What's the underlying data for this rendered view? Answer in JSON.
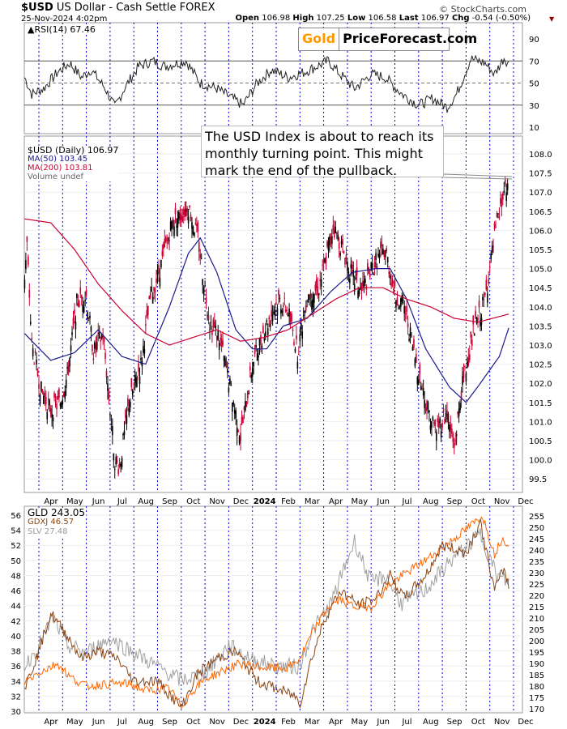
{
  "header": {
    "symbol": "$USD",
    "name": "US Dollar - Cash Settle",
    "exchange": "FOREX",
    "copyright": "© StockCharts.com",
    "datetime": "25-Nov-2024 4:02pm",
    "open_label": "Open",
    "open": "106.98",
    "high_label": "High",
    "high": "107.25",
    "low_label": "Low",
    "low": "106.58",
    "last_label": "Last",
    "last": "106.97",
    "chg_label": "Chg",
    "chg": "-0.54 (-0.50%)"
  },
  "logo": {
    "gold": "Gold",
    "rest": "PriceForecast.com"
  },
  "annotation": "The USD Index is about to reach its monthly turning point. This might mark the end of the pullback.",
  "colors": {
    "grid_month": "#0000dd",
    "ma50": "#1a1a8c",
    "ma200": "#cc0033",
    "gld": "#ff6600",
    "gdxj": "#8b4513",
    "slv": "#a0a0a0",
    "up": "#000000",
    "down": "#cc0033"
  },
  "chart_data": [
    {
      "type": "line",
      "title": "RSI(14) 67.46",
      "ylim": [
        0,
        100
      ],
      "yticks": [
        "90",
        "70",
        "50",
        "30",
        "10"
      ],
      "ytick_values": [
        90,
        70,
        50,
        30,
        10
      ],
      "t_unit": "months since Apr-2023",
      "series": [
        {
          "name": "RSI(14)",
          "points": [
            [
              -0.6,
              55
            ],
            [
              -0.3,
              40
            ],
            [
              0.2,
              45
            ],
            [
              0.8,
              60
            ],
            [
              1.3,
              68
            ],
            [
              1.8,
              55
            ],
            [
              2.2,
              62
            ],
            [
              2.8,
              45
            ],
            [
              3.2,
              28
            ],
            [
              3.6,
              45
            ],
            [
              4.2,
              65
            ],
            [
              4.8,
              70
            ],
            [
              5.3,
              65
            ],
            [
              6.2,
              70
            ],
            [
              6.8,
              50
            ],
            [
              7.5,
              45
            ],
            [
              8.0,
              38
            ],
            [
              8.6,
              30
            ],
            [
              9.2,
              50
            ],
            [
              9.8,
              62
            ],
            [
              10.5,
              55
            ],
            [
              11.2,
              60
            ],
            [
              12.2,
              70
            ],
            [
              12.6,
              60
            ],
            [
              13.3,
              45
            ],
            [
              14.0,
              58
            ],
            [
              14.6,
              55
            ],
            [
              15.3,
              40
            ],
            [
              16.0,
              30
            ],
            [
              16.6,
              36
            ],
            [
              17.2,
              28
            ],
            [
              17.6,
              40
            ],
            [
              18.2,
              72
            ],
            [
              18.8,
              68
            ],
            [
              19.2,
              58
            ],
            [
              19.6,
              73
            ],
            [
              19.8,
              67.46
            ]
          ]
        }
      ]
    },
    {
      "type": "candlestick",
      "title": "$USD (Daily) 106.97",
      "ylim": [
        99.2,
        108.3
      ],
      "yticks": [
        "108.0",
        "107.5",
        "107.0",
        "106.5",
        "106.0",
        "105.5",
        "105.0",
        "104.5",
        "104.0",
        "103.5",
        "103.0",
        "102.5",
        "102.0",
        "101.5",
        "101.0",
        "100.5",
        "100.0",
        "99.5"
      ],
      "ytick_values": [
        108,
        107.5,
        107,
        106.5,
        106,
        105.5,
        105,
        104.5,
        104,
        103.5,
        103,
        102.5,
        102,
        101.5,
        101,
        100.5,
        100,
        99.5
      ],
      "xticks": [
        "Apr",
        "May",
        "Jun",
        "Jul",
        "Aug",
        "Sep",
        "Oct",
        "Nov",
        "Dec",
        "2024",
        "Feb",
        "Mar",
        "Apr",
        "May",
        "Jun",
        "Jul",
        "Aug",
        "Sep",
        "Oct",
        "Nov",
        "Dec"
      ],
      "legend": [
        "$USD (Daily) 106.97",
        "MA(50) 103.45",
        "MA(200) 103.81",
        "Volume undef"
      ],
      "series": [
        {
          "name": "$USD",
          "points": [
            [
              -0.6,
              104.8
            ],
            [
              -0.5,
              105.6
            ],
            [
              -0.3,
              103
            ],
            [
              0.1,
              101.8
            ],
            [
              0.5,
              101.3
            ],
            [
              0.9,
              101.5
            ],
            [
              1.2,
              102.2
            ],
            [
              1.6,
              104.1
            ],
            [
              2.0,
              104.3
            ],
            [
              2.3,
              102.8
            ],
            [
              2.7,
              103.3
            ],
            [
              3.2,
              100.0
            ],
            [
              3.4,
              99.8
            ],
            [
              3.8,
              101.5
            ],
            [
              4.3,
              102.5
            ],
            [
              4.7,
              104.2
            ],
            [
              5.2,
              105.2
            ],
            [
              5.6,
              106.2
            ],
            [
              6.0,
              106.4
            ],
            [
              6.3,
              106.6
            ],
            [
              6.7,
              105.8
            ],
            [
              7.2,
              103.6
            ],
            [
              7.6,
              103.2
            ],
            [
              8.2,
              101.5
            ],
            [
              8.5,
              100.6
            ],
            [
              9.0,
              102.5
            ],
            [
              9.5,
              103.4
            ],
            [
              10.1,
              104.2
            ],
            [
              10.5,
              103.9
            ],
            [
              10.9,
              102.8
            ],
            [
              11.3,
              104.3
            ],
            [
              11.8,
              104.5
            ],
            [
              12.4,
              106.1
            ],
            [
              12.8,
              105.5
            ],
            [
              13.2,
              104.8
            ],
            [
              13.6,
              104.4
            ],
            [
              14.2,
              105.2
            ],
            [
              14.6,
              105.5
            ],
            [
              15.0,
              104.3
            ],
            [
              15.4,
              104.0
            ],
            [
              15.8,
              102.8
            ],
            [
              16.3,
              101.5
            ],
            [
              16.7,
              100.8
            ],
            [
              17.2,
              101.2
            ],
            [
              17.5,
              100.3
            ],
            [
              17.8,
              101.8
            ],
            [
              18.3,
              103.3
            ],
            [
              18.8,
              104.2
            ],
            [
              19.2,
              105.8
            ],
            [
              19.6,
              107.0
            ],
            [
              19.8,
              106.97
            ]
          ]
        },
        {
          "name": "MA(50)",
          "points": [
            [
              -0.6,
              103.3
            ],
            [
              0.5,
              102.6
            ],
            [
              1.5,
              102.8
            ],
            [
              2.5,
              103.4
            ],
            [
              3.5,
              102.7
            ],
            [
              4.5,
              102.5
            ],
            [
              5.5,
              104.0
            ],
            [
              6.3,
              105.4
            ],
            [
              6.8,
              105.8
            ],
            [
              7.5,
              104.9
            ],
            [
              8.3,
              103.4
            ],
            [
              9.0,
              102.9
            ],
            [
              9.6,
              102.9
            ],
            [
              10.3,
              103.5
            ],
            [
              11.3,
              103.7
            ],
            [
              12.3,
              104.4
            ],
            [
              13.2,
              104.9
            ],
            [
              14.2,
              105.0
            ],
            [
              14.8,
              105.0
            ],
            [
              15.5,
              104.2
            ],
            [
              16.3,
              102.9
            ],
            [
              17.3,
              101.9
            ],
            [
              18.0,
              101.5
            ],
            [
              18.6,
              102.0
            ],
            [
              19.4,
              102.7
            ],
            [
              19.8,
              103.45
            ]
          ]
        },
        {
          "name": "MA(200)",
          "points": [
            [
              -0.6,
              106.3
            ],
            [
              0.5,
              106.2
            ],
            [
              1.5,
              105.5
            ],
            [
              2.5,
              104.6
            ],
            [
              3.5,
              103.9
            ],
            [
              4.5,
              103.3
            ],
            [
              5.5,
              103.0
            ],
            [
              6.5,
              103.2
            ],
            [
              7.5,
              103.4
            ],
            [
              8.5,
              103.1
            ],
            [
              9.5,
              103.2
            ],
            [
              10.5,
              103.4
            ],
            [
              11.5,
              103.8
            ],
            [
              12.5,
              104.2
            ],
            [
              13.5,
              104.5
            ],
            [
              14.5,
              104.5
            ],
            [
              15.5,
              104.2
            ],
            [
              16.5,
              104.0
            ],
            [
              17.5,
              103.7
            ],
            [
              18.5,
              103.6
            ],
            [
              19.8,
              103.81
            ]
          ]
        }
      ]
    },
    {
      "type": "line",
      "title": "GLD / GDXJ / SLV",
      "yticks_left": [
        "56",
        "54",
        "52",
        "50",
        "48",
        "46",
        "44",
        "42",
        "40",
        "38",
        "36",
        "34",
        "32",
        "30"
      ],
      "ytick_values_left": [
        56,
        54,
        52,
        50,
        48,
        46,
        44,
        42,
        40,
        38,
        36,
        34,
        32,
        30
      ],
      "yticks_right": [
        "255",
        "250",
        "245",
        "240",
        "235",
        "230",
        "225",
        "220",
        "215",
        "210",
        "205",
        "200",
        "195",
        "190",
        "185",
        "180",
        "175",
        "170"
      ],
      "ytick_values_right": [
        255,
        250,
        245,
        240,
        235,
        230,
        225,
        220,
        215,
        210,
        205,
        200,
        195,
        190,
        185,
        180,
        175,
        170
      ],
      "legend": [
        "GLD 243.05",
        "GDXJ 46.57",
        "SLV 27.48"
      ],
      "series": [
        {
          "name": "GLD",
          "axis": "right",
          "points": [
            [
              -0.6,
              182
            ],
            [
              0,
              186
            ],
            [
              0.8,
              190
            ],
            [
              1.3,
              184
            ],
            [
              2,
              180
            ],
            [
              3,
              181
            ],
            [
              3.8,
              181
            ],
            [
              4.5,
              178
            ],
            [
              5.5,
              179
            ],
            [
              6.0,
              171
            ],
            [
              6.5,
              178
            ],
            [
              7.0,
              183
            ],
            [
              7.8,
              187
            ],
            [
              8.5,
              190
            ],
            [
              9.5,
              188
            ],
            [
              10.5,
              188
            ],
            [
              11.0,
              192
            ],
            [
              11.5,
              203
            ],
            [
              12.2,
              215
            ],
            [
              12.7,
              218
            ],
            [
              13.3,
              215
            ],
            [
              14.0,
              215
            ],
            [
              14.8,
              225
            ],
            [
              15.5,
              230
            ],
            [
              16.5,
              237
            ],
            [
              17.5,
              245
            ],
            [
              18.7,
              255
            ],
            [
              19.2,
              238
            ],
            [
              19.5,
              245
            ],
            [
              19.8,
              243.05
            ]
          ]
        },
        {
          "name": "GDXJ",
          "axis": "left",
          "points": [
            [
              -0.6,
              33
            ],
            [
              0,
              38
            ],
            [
              0.5,
              43
            ],
            [
              1.2,
              40
            ],
            [
              1.8,
              37
            ],
            [
              2.5,
              38
            ],
            [
              3.3,
              37
            ],
            [
              4.0,
              34
            ],
            [
              5.0,
              34
            ],
            [
              6.0,
              30.5
            ],
            [
              6.7,
              35
            ],
            [
              7.5,
              37
            ],
            [
              8.3,
              38
            ],
            [
              9.2,
              34
            ],
            [
              10.0,
              33
            ],
            [
              10.8,
              32
            ],
            [
              11.0,
              31
            ],
            [
              11.4,
              36
            ],
            [
              12.0,
              42
            ],
            [
              12.7,
              46
            ],
            [
              13.5,
              44
            ],
            [
              14.2,
              45
            ],
            [
              14.8,
              48
            ],
            [
              15.4,
              45
            ],
            [
              16.3,
              48
            ],
            [
              17.0,
              52
            ],
            [
              18.0,
              51
            ],
            [
              18.6,
              55
            ],
            [
              19.2,
              46
            ],
            [
              19.6,
              49
            ],
            [
              19.8,
              46.57
            ]
          ]
        },
        {
          "name": "SLV",
          "axis": "own",
          "points": [
            [
              -0.6,
              21.5
            ],
            [
              0,
              23
            ],
            [
              0.6,
              25
            ],
            [
              1.2,
              23
            ],
            [
              2,
              22.5
            ],
            [
              3,
              23.5
            ],
            [
              4,
              22.5
            ],
            [
              5,
              21.5
            ],
            [
              6,
              20.5
            ],
            [
              7,
              21
            ],
            [
              8,
              23
            ],
            [
              9,
              22
            ],
            [
              10,
              21.5
            ],
            [
              11,
              21.5
            ],
            [
              11.5,
              24
            ],
            [
              12.3,
              26
            ],
            [
              13.3,
              30.5
            ],
            [
              14,
              27.5
            ],
            [
              14.6,
              28
            ],
            [
              15.3,
              26
            ],
            [
              16.3,
              27
            ],
            [
              17.3,
              29
            ],
            [
              18.6,
              31
            ],
            [
              19.3,
              28
            ],
            [
              19.8,
              27.48
            ]
          ]
        }
      ]
    }
  ]
}
